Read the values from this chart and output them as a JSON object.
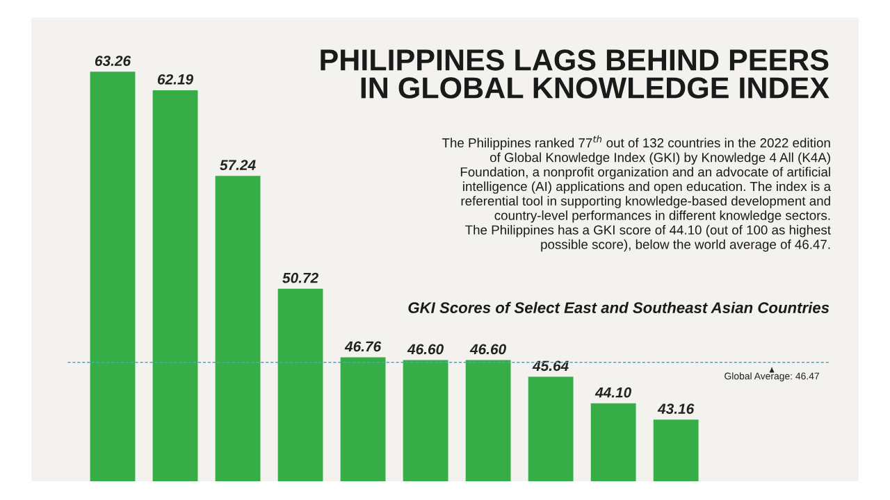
{
  "chart_data": {
    "type": "bar",
    "title": "PHILIPPINES LAGS BEHIND PEERS\nIN GLOBAL KNOWLEDGE INDEX",
    "subtitle": "The Philippines ranked 77$^{th}$ out of 132 countries in the 2022 edition\nof Global Knowledge Index (GKI) by Knowledge 4 All (K4A)\nFoundation, a nonprofit organization and an advocate of artificial\nintelligence (AI) applications and open education. The index is a\nreferential tool in supporting knowledge-based development and\ncountry-level performances in different knowledge sectors.\nThe Philippines has a GKI score of 44.10 (out of 100 as highest\npossible score), below the world average of 46.47.",
    "annotations": [
      "GKI Scores of Select East and Southeast Asian Countries"
    ],
    "categories": [
      null,
      null,
      null,
      null,
      null,
      null,
      null,
      null,
      null,
      null
    ],
    "values": [
      63.26,
      62.19,
      57.24,
      50.72,
      46.76,
      46.6,
      46.6,
      45.64,
      44.1,
      43.16
    ],
    "value_labels": [
      "63.26",
      "62.19",
      "57.24",
      "50.72",
      "46.76",
      "46.60",
      "46.60",
      "45.64",
      "44.10",
      "43.16"
    ],
    "color": "#37ad47",
    "ylim": [
      39.6,
      66.4
    ],
    "tick_labels": false,
    "grid": false,
    "legend": false,
    "ref_lines": [
      {
        "axis": "y",
        "value": 46.47,
        "label": "Global Average: 46.47",
        "color": "#3fa9d6",
        "line_style": "dashed"
      }
    ]
  }
}
